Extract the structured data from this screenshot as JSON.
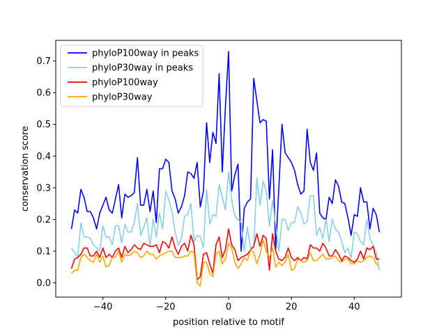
{
  "chart_data": {
    "type": "line",
    "xlabel": "position relative to motif",
    "ylabel": "conservation score",
    "xlim": [
      -55,
      55
    ],
    "ylim": [
      -0.045,
      0.765
    ],
    "xticks": [
      -40,
      -20,
      0,
      20,
      40
    ],
    "xtick_labels": [
      "−40",
      "−20",
      "0",
      "20",
      "40"
    ],
    "yticks": [
      0.0,
      0.1,
      0.2,
      0.3,
      0.4,
      0.5,
      0.6,
      0.7
    ],
    "ytick_labels": [
      "0.0",
      "0.1",
      "0.2",
      "0.3",
      "0.4",
      "0.5",
      "0.6",
      "0.7"
    ],
    "grid": false,
    "legend_position": "top-left",
    "x_start": -50,
    "x_end": 50,
    "series": [
      {
        "name": "phyloP100way in peaks",
        "color": "#0000ff",
        "values": [
          0.17,
          0.23,
          0.22,
          0.295,
          0.27,
          0.225,
          0.225,
          0.205,
          0.17,
          0.22,
          0.245,
          0.27,
          0.23,
          0.22,
          0.265,
          0.31,
          0.205,
          0.28,
          0.27,
          0.275,
          0.285,
          0.395,
          0.245,
          0.245,
          0.295,
          0.225,
          0.29,
          0.19,
          0.36,
          0.36,
          0.39,
          0.38,
          0.29,
          0.265,
          0.22,
          0.24,
          0.275,
          0.35,
          0.345,
          0.33,
          0.38,
          0.24,
          0.29,
          0.505,
          0.38,
          0.475,
          0.44,
          0.66,
          0.35,
          0.555,
          0.73,
          0.29,
          0.34,
          0.375,
          0.1,
          0.235,
          0.255,
          0.265,
          0.645,
          0.575,
          0.505,
          0.515,
          0.51,
          0.265,
          0.42,
          0.105,
          0.3,
          0.5,
          0.41,
          0.395,
          0.38,
          0.355,
          0.31,
          0.28,
          0.29,
          0.485,
          0.38,
          0.355,
          0.41,
          0.22,
          0.205,
          0.2,
          0.27,
          0.25,
          0.325,
          0.305,
          0.255,
          0.25,
          0.205,
          0.15,
          0.215,
          0.21,
          0.3,
          0.255,
          0.255,
          0.17,
          0.235,
          0.215,
          0.16
        ]
      },
      {
        "name": "phyloP30way in peaks",
        "color": "#87ceeb",
        "values": [
          0.11,
          0.095,
          0.08,
          0.19,
          0.145,
          0.145,
          0.14,
          0.12,
          0.11,
          0.1,
          0.18,
          0.145,
          0.145,
          0.12,
          0.18,
          0.18,
          0.125,
          0.185,
          0.16,
          0.16,
          0.19,
          0.25,
          0.15,
          0.175,
          0.205,
          0.115,
          0.2,
          0.145,
          0.22,
          0.17,
          0.29,
          0.26,
          0.225,
          0.16,
          0.12,
          0.14,
          0.21,
          0.215,
          0.25,
          0.13,
          0.15,
          0.145,
          0.11,
          0.295,
          0.185,
          0.215,
          0.21,
          0.31,
          0.27,
          0.23,
          0.35,
          0.26,
          0.21,
          0.2,
          0.19,
          0.1,
          0.175,
          0.11,
          0.11,
          0.33,
          0.245,
          0.32,
          0.29,
          0.18,
          0.26,
          0.18,
          0.1,
          0.2,
          0.2,
          0.165,
          0.19,
          0.19,
          0.24,
          0.22,
          0.185,
          0.195,
          0.275,
          0.275,
          0.15,
          0.175,
          0.14,
          0.2,
          0.13,
          0.2,
          0.17,
          0.16,
          0.13,
          0.095,
          0.11,
          0.08,
          0.16,
          0.155,
          0.13,
          0.12,
          0.2,
          0.14,
          0.12,
          0.095,
          0.04
        ]
      },
      {
        "name": "phyloP100way",
        "color": "#ff0000",
        "values": [
          0.045,
          0.075,
          0.08,
          0.09,
          0.11,
          0.11,
          0.085,
          0.085,
          0.1,
          0.08,
          0.11,
          0.08,
          0.09,
          0.08,
          0.1,
          0.11,
          0.08,
          0.115,
          0.095,
          0.105,
          0.12,
          0.11,
          0.105,
          0.125,
          0.12,
          0.115,
          0.115,
          0.12,
          0.095,
          0.13,
          0.125,
          0.11,
          0.145,
          0.11,
          0.09,
          0.115,
          0.125,
          0.1,
          0.15,
          0.12,
          0.01,
          0.02,
          0.09,
          0.095,
          0.06,
          0.03,
          0.12,
          0.145,
          0.08,
          0.105,
          0.17,
          0.12,
          0.105,
          0.07,
          0.08,
          0.085,
          0.09,
          0.105,
          0.115,
          0.155,
          0.115,
          0.15,
          0.14,
          0.04,
          0.155,
          0.1,
          0.075,
          0.07,
          0.08,
          0.11,
          0.08,
          0.07,
          0.08,
          0.07,
          0.08,
          0.075,
          0.12,
          0.11,
          0.11,
          0.1,
          0.125,
          0.11,
          0.085,
          0.085,
          0.105,
          0.09,
          0.07,
          0.085,
          0.08,
          0.07,
          0.065,
          0.075,
          0.1,
          0.075,
          0.11,
          0.105,
          0.115,
          0.075,
          0.075
        ]
      },
      {
        "name": "phyloP30way",
        "color": "#ffa500",
        "values": [
          0.03,
          0.04,
          0.04,
          0.08,
          0.09,
          0.08,
          0.07,
          0.065,
          0.09,
          0.065,
          0.085,
          0.05,
          0.055,
          0.08,
          0.08,
          0.1,
          0.065,
          0.09,
          0.085,
          0.09,
          0.1,
          0.095,
          0.08,
          0.085,
          0.1,
          0.09,
          0.09,
          0.075,
          0.085,
          0.09,
          0.095,
          0.1,
          0.1,
          0.08,
          0.08,
          0.08,
          0.085,
          0.085,
          0.1,
          0.095,
          0.0,
          -0.01,
          0.065,
          0.065,
          0.03,
          0.02,
          0.09,
          0.1,
          0.06,
          0.075,
          0.125,
          0.11,
          0.065,
          0.045,
          0.06,
          0.08,
          0.07,
          0.105,
          0.095,
          0.06,
          0.09,
          0.135,
          0.1,
          0.08,
          0.11,
          0.05,
          0.065,
          0.055,
          0.065,
          0.09,
          0.04,
          0.045,
          0.075,
          0.07,
          0.065,
          0.07,
          0.095,
          0.07,
          0.07,
          0.08,
          0.09,
          0.075,
          0.075,
          0.08,
          0.085,
          0.07,
          0.065,
          0.075,
          0.075,
          0.06,
          0.06,
          0.07,
          0.065,
          0.07,
          0.08,
          0.085,
          0.08,
          0.06,
          0.055
        ]
      }
    ]
  }
}
